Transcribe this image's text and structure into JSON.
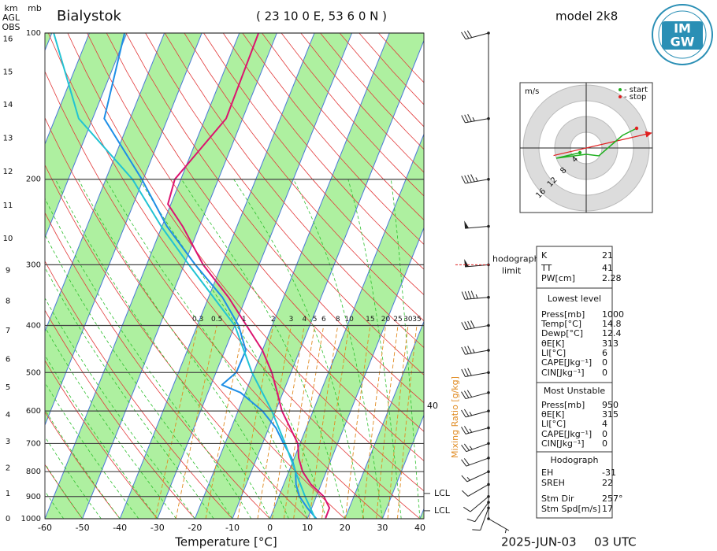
{
  "chart_data": {
    "type": "skewt",
    "title": "Bialystok",
    "subtitle": "( 23 10 0 E, 53 6 0 N )",
    "model": "model 2k8",
    "date": "2025-JUN-03",
    "time": "03 UTC",
    "xlabel": "Temperature [°C]",
    "xlim": [
      -60,
      40
    ],
    "xticks": [
      -60,
      -50,
      -40,
      -30,
      -20,
      -10,
      0,
      10,
      20,
      30,
      40
    ],
    "ylim": [
      1000,
      100
    ],
    "yticks": [
      100,
      200,
      300,
      400,
      500,
      600,
      700,
      800,
      900,
      1000
    ],
    "log_y": true,
    "y_unit": "mb",
    "height_unit": "km",
    "height_ref": [
      "AGL",
      "OBS"
    ],
    "height_ticks": [
      0,
      1,
      2,
      3,
      4,
      5,
      6,
      7,
      8,
      9,
      10,
      11,
      12,
      13,
      14,
      15,
      16
    ],
    "series": [
      {
        "color": "#dc1470",
        "pressure": [
          1000,
          950,
          900,
          850,
          800,
          750,
          700,
          650,
          600,
          550,
          500,
          450,
          400,
          350,
          300,
          250,
          225,
          200,
          150,
          100
        ],
        "values": [
          14.8,
          14.7,
          12.0,
          7.3,
          3.7,
          1.2,
          -0.6,
          -4.3,
          -8.3,
          -11.5,
          -15.1,
          -20.0,
          -26.9,
          -34.7,
          -44.9,
          -54.5,
          -60.8,
          -61.6,
          -54.4,
          -54.9
        ]
      },
      {
        "color": "#1e8ee6",
        "pressure": [
          1000,
          950,
          900,
          850,
          800,
          750,
          700,
          650,
          600,
          550,
          530,
          500,
          450,
          400,
          350,
          300,
          250,
          200,
          150,
          100
        ],
        "values": [
          12.4,
          8.8,
          5.5,
          3.3,
          1.8,
          -0.7,
          -4.4,
          -8.1,
          -13.5,
          -21.3,
          -27.1,
          -24.6,
          -24.4,
          -29.0,
          -36.3,
          -47.0,
          -58.7,
          -70.4,
          -86.9,
          -90.6
        ]
      },
      {
        "color": "#22c3d3",
        "pressure": [
          1000,
          900,
          800,
          700,
          600,
          500,
          400,
          300,
          250,
          200,
          150,
          100
        ],
        "values": [
          12.1,
          7.0,
          1.8,
          -4.0,
          -11.0,
          -20.4,
          -30.0,
          -48.7,
          -60.2,
          -72.9,
          -93.7,
          -109.5
        ]
      }
    ],
    "mixing_ratio": {
      "label": "Mixing Ratio [g/kg]",
      "color": "#e08a20",
      "values": [
        0.3,
        0.5,
        1,
        2,
        3,
        4,
        5,
        6,
        8,
        10,
        15,
        20,
        25,
        30,
        35
      ]
    },
    "right_label": {
      "value": 40,
      "pressure": 586
    },
    "lcl": [
      {
        "label": "LCL",
        "pressure": 887
      },
      {
        "label": "LCL",
        "pressure": 963
      }
    ],
    "winds": {
      "pressure": [
        100,
        150,
        200,
        250,
        300,
        350,
        400,
        450,
        500,
        550,
        600,
        650,
        700,
        750,
        800,
        850,
        900,
        925,
        950,
        1000
      ],
      "direction": [
        255,
        260,
        260,
        265,
        265,
        265,
        260,
        260,
        260,
        255,
        255,
        255,
        250,
        250,
        245,
        240,
        230,
        215,
        200,
        120
      ],
      "speed": [
        30,
        35,
        45,
        50,
        50,
        45,
        40,
        35,
        30,
        30,
        25,
        25,
        25,
        20,
        15,
        10,
        10,
        10,
        10,
        5
      ]
    },
    "hodograph": {
      "unit": "m/s",
      "rings": [
        4,
        8,
        12,
        16
      ],
      "u": [
        -1.6,
        -7.6,
        0,
        3.2,
        6.2,
        9.2,
        12.8
      ],
      "v": [
        -1.2,
        -2.6,
        -1.6,
        -2.0,
        0.6,
        3.2,
        5.0
      ],
      "start": "- start",
      "stop": "- stop",
      "start_color": "#20b020",
      "stop_color": "#e02020",
      "limit": [
        "hodograph",
        "limit"
      ],
      "limit_pressure": 300
    }
  },
  "table": {
    "indices": [
      [
        "K",
        21
      ],
      [
        "TT",
        41
      ],
      [
        "PW[cm]",
        2.28
      ]
    ],
    "sections": [
      {
        "title": "Lowest level",
        "rows": [
          [
            "Press[mb]",
            1000
          ],
          [
            "Temp[°C]",
            14.8
          ],
          [
            "Dewp[°C]",
            12.4
          ],
          [
            "θE[K]",
            313
          ],
          [
            "LI[°C]",
            6
          ],
          [
            "CAPE[Jkg⁻¹]",
            0
          ],
          [
            "CIN[Jkg⁻¹]",
            0
          ]
        ]
      },
      {
        "title": "Most Unstable",
        "rows": [
          [
            "Press[mb]",
            950
          ],
          [
            "θE[K]",
            315
          ],
          [
            "LI[°C]",
            4
          ],
          [
            "CAPE[Jkg⁻¹]",
            0
          ],
          [
            "CIN[Jkg⁻¹]",
            0
          ]
        ]
      },
      {
        "title": "Hodograph",
        "rows": [
          [
            "EH",
            -31
          ],
          [
            "SREH",
            22
          ],
          [
            "Stm Dir",
            {
              "value": 257,
              "label": "257°"
            }
          ],
          [
            "Stm Spd[m/s]",
            17
          ]
        ]
      }
    ]
  },
  "logo": [
    "IM",
    "GW"
  ]
}
